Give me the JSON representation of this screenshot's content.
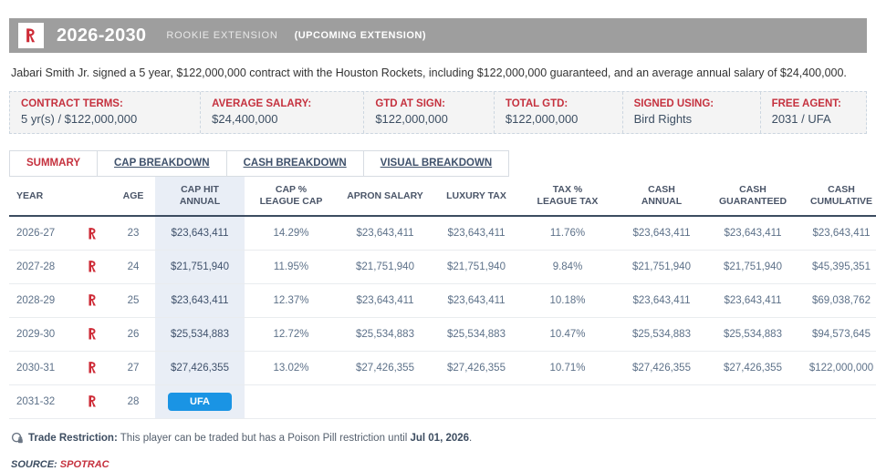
{
  "colors": {
    "accent_red": "#c5313e",
    "ufa_blue": "#1a94e4",
    "header_gray": "#9e9e9e",
    "highlight_blue": "#e9eef6",
    "logo_red": "#ce2b37"
  },
  "header": {
    "years": "2026-2030",
    "type": "ROOKIE EXTENSION",
    "status": "(UPCOMING EXTENSION)",
    "team_logo": "houston-rockets"
  },
  "intro": "Jabari Smith Jr. signed a 5 year, $122,000,000 contract with the Houston Rockets, including $122,000,000 guaranteed, and an average annual salary of $24,400,000.",
  "terms": [
    {
      "label": "CONTRACT TERMS:",
      "value": "5 yr(s) / $122,000,000"
    },
    {
      "label": "AVERAGE SALARY:",
      "value": "$24,400,000"
    },
    {
      "label": "GTD AT SIGN:",
      "value": "$122,000,000"
    },
    {
      "label": "TOTAL GTD:",
      "value": "$122,000,000"
    },
    {
      "label": "SIGNED USING:",
      "value": "Bird Rights"
    },
    {
      "label": "FREE AGENT:",
      "value": "2031 / UFA"
    }
  ],
  "tabs": [
    {
      "label": "SUMMARY",
      "active": true
    },
    {
      "label": "CAP BREAKDOWN",
      "active": false
    },
    {
      "label": "CASH BREAKDOWN",
      "active": false
    },
    {
      "label": "VISUAL BREAKDOWN",
      "active": false
    }
  ],
  "table": {
    "columns": [
      {
        "key": "year",
        "label": "YEAR"
      },
      {
        "key": "team",
        "label": ""
      },
      {
        "key": "age",
        "label": "AGE"
      },
      {
        "key": "cap_hit",
        "label": "CAP HIT\nANNUAL",
        "highlight": true
      },
      {
        "key": "cap_pct",
        "label": "CAP %\nLEAGUE CAP"
      },
      {
        "key": "apron",
        "label": "APRON SALARY"
      },
      {
        "key": "luxury",
        "label": "LUXURY TAX"
      },
      {
        "key": "tax_pct",
        "label": "TAX %\nLEAGUE TAX"
      },
      {
        "key": "cash_annual",
        "label": "CASH\nANNUAL"
      },
      {
        "key": "cash_gtd",
        "label": "CASH\nGUARANTEED"
      },
      {
        "key": "cash_cum",
        "label": "CASH\nCUMULATIVE"
      }
    ],
    "rows": [
      {
        "year": "2026-27",
        "age": "23",
        "cap_hit": "$23,643,411",
        "cap_pct": "14.29%",
        "apron": "$23,643,411",
        "luxury": "$23,643,411",
        "tax_pct": "11.76%",
        "cash_annual": "$23,643,411",
        "cash_gtd": "$23,643,411",
        "cash_cum": "$23,643,411"
      },
      {
        "year": "2027-28",
        "age": "24",
        "cap_hit": "$21,751,940",
        "cap_pct": "11.95%",
        "apron": "$21,751,940",
        "luxury": "$21,751,940",
        "tax_pct": "9.84%",
        "cash_annual": "$21,751,940",
        "cash_gtd": "$21,751,940",
        "cash_cum": "$45,395,351"
      },
      {
        "year": "2028-29",
        "age": "25",
        "cap_hit": "$23,643,411",
        "cap_pct": "12.37%",
        "apron": "$23,643,411",
        "luxury": "$23,643,411",
        "tax_pct": "10.18%",
        "cash_annual": "$23,643,411",
        "cash_gtd": "$23,643,411",
        "cash_cum": "$69,038,762"
      },
      {
        "year": "2029-30",
        "age": "26",
        "cap_hit": "$25,534,883",
        "cap_pct": "12.72%",
        "apron": "$25,534,883",
        "luxury": "$25,534,883",
        "tax_pct": "10.47%",
        "cash_annual": "$25,534,883",
        "cash_gtd": "$25,534,883",
        "cash_cum": "$94,573,645"
      },
      {
        "year": "2030-31",
        "age": "27",
        "cap_hit": "$27,426,355",
        "cap_pct": "13.02%",
        "apron": "$27,426,355",
        "luxury": "$27,426,355",
        "tax_pct": "10.71%",
        "cash_annual": "$27,426,355",
        "cash_gtd": "$27,426,355",
        "cash_cum": "$122,000,000"
      },
      {
        "year": "2031-32",
        "age": "28",
        "ufa": "UFA"
      }
    ]
  },
  "restriction": {
    "label": "Trade Restriction:",
    "text": " This player can be traded but has a Poison Pill restriction until ",
    "date": "Jul 01, 2026",
    "suffix": "."
  },
  "source": {
    "label": "SOURCE:",
    "link": "SPOTRAC"
  }
}
